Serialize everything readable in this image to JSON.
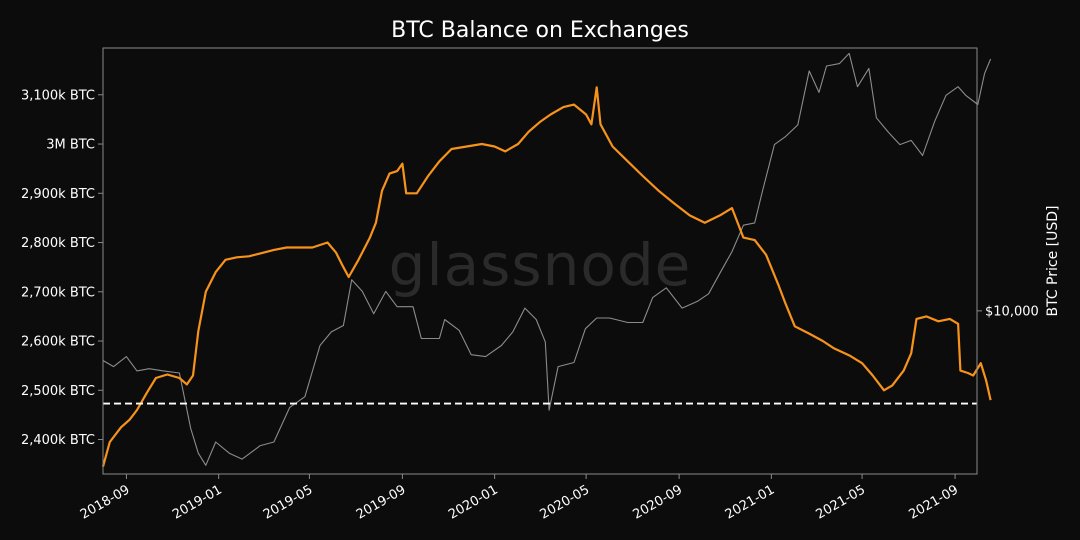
{
  "chart_data": {
    "type": "line",
    "title": "BTC Balance on Exchanges",
    "watermark": "glassnode",
    "y_left": {
      "label": "",
      "ylim": [
        2330,
        3195
      ],
      "ticks": [
        {
          "value": 2400,
          "label": "2,400k BTC"
        },
        {
          "value": 2500,
          "label": "2,500k BTC"
        },
        {
          "value": 2600,
          "label": "2,600k BTC"
        },
        {
          "value": 2700,
          "label": "2,700k BTC"
        },
        {
          "value": 2800,
          "label": "2,800k BTC"
        },
        {
          "value": 2900,
          "label": "2,900k BTC"
        },
        {
          "value": 3000,
          "label": "3M BTC"
        },
        {
          "value": 3100,
          "label": "3,100k BTC"
        }
      ]
    },
    "y_right": {
      "label": "BTC Price [USD]",
      "scale": "log",
      "ylim": [
        3100,
        66000
      ],
      "ticks": [
        {
          "value": 10000,
          "label": "$10,000"
        }
      ]
    },
    "x_axis": {
      "xlim": [
        "2018-08-01",
        "2021-09-30"
      ],
      "ticks": [
        {
          "date": "2018-09-01",
          "label": "2018-09"
        },
        {
          "date": "2019-01-01",
          "label": "2019-01"
        },
        {
          "date": "2019-05-01",
          "label": "2019-05"
        },
        {
          "date": "2019-09-01",
          "label": "2019-09"
        },
        {
          "date": "2020-01-01",
          "label": "2020-01"
        },
        {
          "date": "2020-05-01",
          "label": "2020-05"
        },
        {
          "date": "2020-09-01",
          "label": "2020-09"
        },
        {
          "date": "2021-01-01",
          "label": "2021-01"
        },
        {
          "date": "2021-05-01",
          "label": "2021-05"
        },
        {
          "date": "2021-09-01",
          "label": "2021-09"
        }
      ]
    },
    "reference_line": {
      "axis": "left",
      "value": 2473,
      "style": "dashed",
      "color": "#ffffff"
    },
    "grid": false,
    "series": [
      {
        "axis": "left",
        "color": "#f7931a",
        "points": [
          [
            "2018-08-01",
            2345
          ],
          [
            "2018-08-10",
            2395
          ],
          [
            "2018-08-25",
            2425
          ],
          [
            "2018-09-05",
            2440
          ],
          [
            "2018-09-15",
            2460
          ],
          [
            "2018-09-28",
            2495
          ],
          [
            "2018-10-10",
            2525
          ],
          [
            "2018-10-25",
            2532
          ],
          [
            "2018-11-10",
            2525
          ],
          [
            "2018-11-20",
            2512
          ],
          [
            "2018-11-28",
            2530
          ],
          [
            "2018-12-05",
            2620
          ],
          [
            "2018-12-15",
            2700
          ],
          [
            "2018-12-28",
            2740
          ],
          [
            "2019-01-10",
            2765
          ],
          [
            "2019-01-25",
            2770
          ],
          [
            "2019-02-10",
            2772
          ],
          [
            "2019-02-25",
            2778
          ],
          [
            "2019-03-15",
            2785
          ],
          [
            "2019-04-01",
            2790
          ],
          [
            "2019-04-15",
            2790
          ],
          [
            "2019-05-05",
            2790
          ],
          [
            "2019-05-25",
            2800
          ],
          [
            "2019-06-05",
            2780
          ],
          [
            "2019-06-15",
            2750
          ],
          [
            "2019-06-22",
            2730
          ],
          [
            "2019-07-05",
            2765
          ],
          [
            "2019-07-20",
            2810
          ],
          [
            "2019-07-28",
            2840
          ],
          [
            "2019-08-05",
            2905
          ],
          [
            "2019-08-15",
            2940
          ],
          [
            "2019-08-25",
            2945
          ],
          [
            "2019-09-01",
            2960
          ],
          [
            "2019-09-06",
            2900
          ],
          [
            "2019-09-20",
            2900
          ],
          [
            "2019-10-05",
            2935
          ],
          [
            "2019-10-20",
            2965
          ],
          [
            "2019-11-05",
            2990
          ],
          [
            "2019-11-25",
            2995
          ],
          [
            "2019-12-15",
            3000
          ],
          [
            "2020-01-01",
            2995
          ],
          [
            "2020-01-15",
            2985
          ],
          [
            "2020-02-01",
            3000
          ],
          [
            "2020-02-15",
            3025
          ],
          [
            "2020-03-01",
            3045
          ],
          [
            "2020-03-15",
            3060
          ],
          [
            "2020-04-01",
            3075
          ],
          [
            "2020-04-15",
            3080
          ],
          [
            "2020-05-01",
            3060
          ],
          [
            "2020-05-08",
            3040
          ],
          [
            "2020-05-15",
            3115
          ],
          [
            "2020-05-20",
            3040
          ],
          [
            "2020-06-05",
            2995
          ],
          [
            "2020-06-25",
            2965
          ],
          [
            "2020-07-15",
            2935
          ],
          [
            "2020-08-05",
            2905
          ],
          [
            "2020-08-25",
            2880
          ],
          [
            "2020-09-15",
            2855
          ],
          [
            "2020-10-05",
            2840
          ],
          [
            "2020-10-25",
            2855
          ],
          [
            "2020-11-10",
            2870
          ],
          [
            "2020-11-25",
            2810
          ],
          [
            "2020-12-10",
            2805
          ],
          [
            "2020-12-25",
            2775
          ],
          [
            "2021-01-10",
            2715
          ],
          [
            "2021-01-20",
            2675
          ],
          [
            "2021-02-01",
            2630
          ],
          [
            "2021-02-20",
            2615
          ],
          [
            "2021-03-10",
            2600
          ],
          [
            "2021-03-25",
            2585
          ],
          [
            "2021-04-15",
            2570
          ],
          [
            "2021-05-01",
            2555
          ],
          [
            "2021-05-15",
            2530
          ],
          [
            "2021-05-30",
            2500
          ],
          [
            "2021-06-10",
            2510
          ],
          [
            "2021-06-25",
            2540
          ],
          [
            "2021-07-05",
            2575
          ],
          [
            "2021-07-12",
            2645
          ],
          [
            "2021-07-25",
            2650
          ],
          [
            "2021-08-10",
            2640
          ],
          [
            "2021-08-25",
            2645
          ],
          [
            "2021-09-05",
            2635
          ],
          [
            "2021-09-08",
            2540
          ],
          [
            "2021-09-18",
            2535
          ],
          [
            "2021-09-25",
            2530
          ],
          [
            "2021-10-05",
            2555
          ],
          [
            "2021-10-12",
            2520
          ],
          [
            "2021-10-18",
            2480
          ]
        ]
      },
      {
        "axis": "right",
        "color": "#8c8c8c",
        "points": [
          [
            "2018-08-01",
            7000
          ],
          [
            "2018-08-15",
            6700
          ],
          [
            "2018-09-01",
            7200
          ],
          [
            "2018-09-15",
            6500
          ],
          [
            "2018-10-01",
            6600
          ],
          [
            "2018-10-20",
            6500
          ],
          [
            "2018-11-10",
            6400
          ],
          [
            "2018-11-25",
            4300
          ],
          [
            "2018-12-05",
            3600
          ],
          [
            "2018-12-15",
            3300
          ],
          [
            "2018-12-28",
            3900
          ],
          [
            "2019-01-15",
            3600
          ],
          [
            "2019-02-01",
            3450
          ],
          [
            "2019-02-25",
            3800
          ],
          [
            "2019-03-15",
            3900
          ],
          [
            "2019-04-05",
            5000
          ],
          [
            "2019-04-25",
            5400
          ],
          [
            "2019-05-15",
            7800
          ],
          [
            "2019-05-30",
            8600
          ],
          [
            "2019-06-15",
            9000
          ],
          [
            "2019-06-26",
            12500
          ],
          [
            "2019-07-10",
            11500
          ],
          [
            "2019-07-25",
            9800
          ],
          [
            "2019-08-10",
            11500
          ],
          [
            "2019-08-25",
            10300
          ],
          [
            "2019-09-15",
            10300
          ],
          [
            "2019-09-26",
            8200
          ],
          [
            "2019-10-20",
            8200
          ],
          [
            "2019-10-27",
            9400
          ],
          [
            "2019-11-15",
            8700
          ],
          [
            "2019-12-01",
            7300
          ],
          [
            "2019-12-20",
            7200
          ],
          [
            "2020-01-10",
            7800
          ],
          [
            "2020-01-25",
            8600
          ],
          [
            "2020-02-10",
            10200
          ],
          [
            "2020-02-25",
            9400
          ],
          [
            "2020-03-08",
            8000
          ],
          [
            "2020-03-13",
            4900
          ],
          [
            "2020-03-25",
            6700
          ],
          [
            "2020-04-15",
            6900
          ],
          [
            "2020-04-30",
            8800
          ],
          [
            "2020-05-15",
            9500
          ],
          [
            "2020-06-01",
            9500
          ],
          [
            "2020-06-25",
            9200
          ],
          [
            "2020-07-15",
            9200
          ],
          [
            "2020-07-28",
            11000
          ],
          [
            "2020-08-15",
            11800
          ],
          [
            "2020-09-05",
            10200
          ],
          [
            "2020-09-25",
            10700
          ],
          [
            "2020-10-10",
            11300
          ],
          [
            "2020-10-25",
            13100
          ],
          [
            "2020-11-10",
            15300
          ],
          [
            "2020-11-25",
            18500
          ],
          [
            "2020-12-10",
            18800
          ],
          [
            "2020-12-20",
            23500
          ],
          [
            "2021-01-05",
            33000
          ],
          [
            "2021-01-20",
            35000
          ],
          [
            "2021-02-05",
            38000
          ],
          [
            "2021-02-20",
            56000
          ],
          [
            "2021-03-05",
            48000
          ],
          [
            "2021-03-15",
            58000
          ],
          [
            "2021-04-01",
            59000
          ],
          [
            "2021-04-14",
            63500
          ],
          [
            "2021-04-25",
            50000
          ],
          [
            "2021-05-10",
            57000
          ],
          [
            "2021-05-20",
            40000
          ],
          [
            "2021-06-05",
            36000
          ],
          [
            "2021-06-20",
            33000
          ],
          [
            "2021-07-05",
            34000
          ],
          [
            "2021-07-20",
            30500
          ],
          [
            "2021-08-05",
            39000
          ],
          [
            "2021-08-20",
            47000
          ],
          [
            "2021-09-05",
            50000
          ],
          [
            "2021-09-15",
            47000
          ],
          [
            "2021-10-01",
            44000
          ],
          [
            "2021-10-10",
            55000
          ],
          [
            "2021-10-18",
            61000
          ]
        ]
      }
    ]
  }
}
